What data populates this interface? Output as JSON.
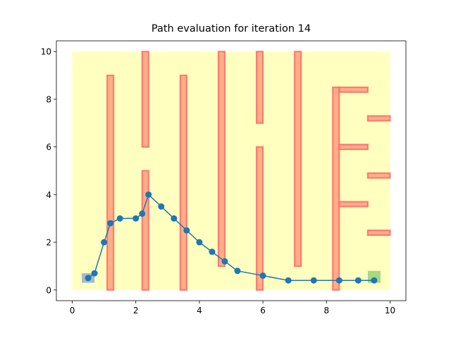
{
  "chart_data": {
    "type": "line",
    "title": "Path evaluation for iteration 14",
    "xlabel": "",
    "ylabel": "",
    "xlim": [
      -0.5,
      10.5
    ],
    "ylim": [
      -0.45,
      10.45
    ],
    "xticks": [
      0,
      2,
      4,
      6,
      8,
      10
    ],
    "yticks": [
      0,
      2,
      4,
      6,
      8,
      10
    ],
    "grid": false,
    "legend": "none",
    "colors": {
      "region": "#ffffc0",
      "obstacle_fill": "#ffa07a",
      "obstacle_edge": "#ff6b6b",
      "path": "#1f77b4",
      "start": "#a9b8cc",
      "goal": "#a8d880"
    },
    "region": {
      "x0": 0,
      "y0": 0,
      "x1": 10,
      "y1": 10
    },
    "obstacles": [
      {
        "x0": 1.1,
        "y0": 0.0,
        "x1": 1.3,
        "y1": 9.0
      },
      {
        "x0": 2.2,
        "y0": 6.0,
        "x1": 2.4,
        "y1": 10.0
      },
      {
        "x0": 2.2,
        "y0": 0.0,
        "x1": 2.4,
        "y1": 5.0
      },
      {
        "x0": 3.4,
        "y0": 0.0,
        "x1": 3.6,
        "y1": 9.0
      },
      {
        "x0": 4.6,
        "y0": 1.0,
        "x1": 4.8,
        "y1": 10.0
      },
      {
        "x0": 5.8,
        "y0": 7.0,
        "x1": 6.0,
        "y1": 10.0
      },
      {
        "x0": 5.8,
        "y0": 0.0,
        "x1": 6.0,
        "y1": 6.0
      },
      {
        "x0": 7.0,
        "y0": 1.0,
        "x1": 7.2,
        "y1": 10.0
      },
      {
        "x0": 8.2,
        "y0": 0.0,
        "x1": 8.4,
        "y1": 8.5
      },
      {
        "x0": 8.4,
        "y0": 8.3,
        "x1": 9.3,
        "y1": 8.5
      },
      {
        "x0": 8.4,
        "y0": 5.9,
        "x1": 9.3,
        "y1": 6.1
      },
      {
        "x0": 8.4,
        "y0": 3.5,
        "x1": 9.3,
        "y1": 3.7
      },
      {
        "x0": 9.3,
        "y0": 7.1,
        "x1": 10.0,
        "y1": 7.3
      },
      {
        "x0": 9.3,
        "y0": 4.7,
        "x1": 10.0,
        "y1": 4.9
      },
      {
        "x0": 9.3,
        "y0": 2.3,
        "x1": 10.0,
        "y1": 2.5
      }
    ],
    "start": {
      "x0": 0.3,
      "y0": 0.3,
      "x1": 0.7,
      "y1": 0.7
    },
    "goal": {
      "x0": 9.3,
      "y0": 0.3,
      "x1": 9.7,
      "y1": 0.8
    },
    "series": [
      {
        "x": [
          0.5,
          0.7,
          1.0,
          1.2,
          1.5,
          2.0,
          2.2,
          2.4,
          2.8,
          3.2,
          3.6,
          4.0,
          4.4,
          4.8,
          5.2,
          6.0,
          6.8,
          7.6,
          8.4,
          9.0,
          9.5
        ],
        "y": [
          0.5,
          0.7,
          2.0,
          2.8,
          3.0,
          3.0,
          3.2,
          4.0,
          3.5,
          3.0,
          2.5,
          2.0,
          1.6,
          1.2,
          0.8,
          0.6,
          0.4,
          0.4,
          0.4,
          0.4,
          0.4
        ]
      }
    ]
  }
}
